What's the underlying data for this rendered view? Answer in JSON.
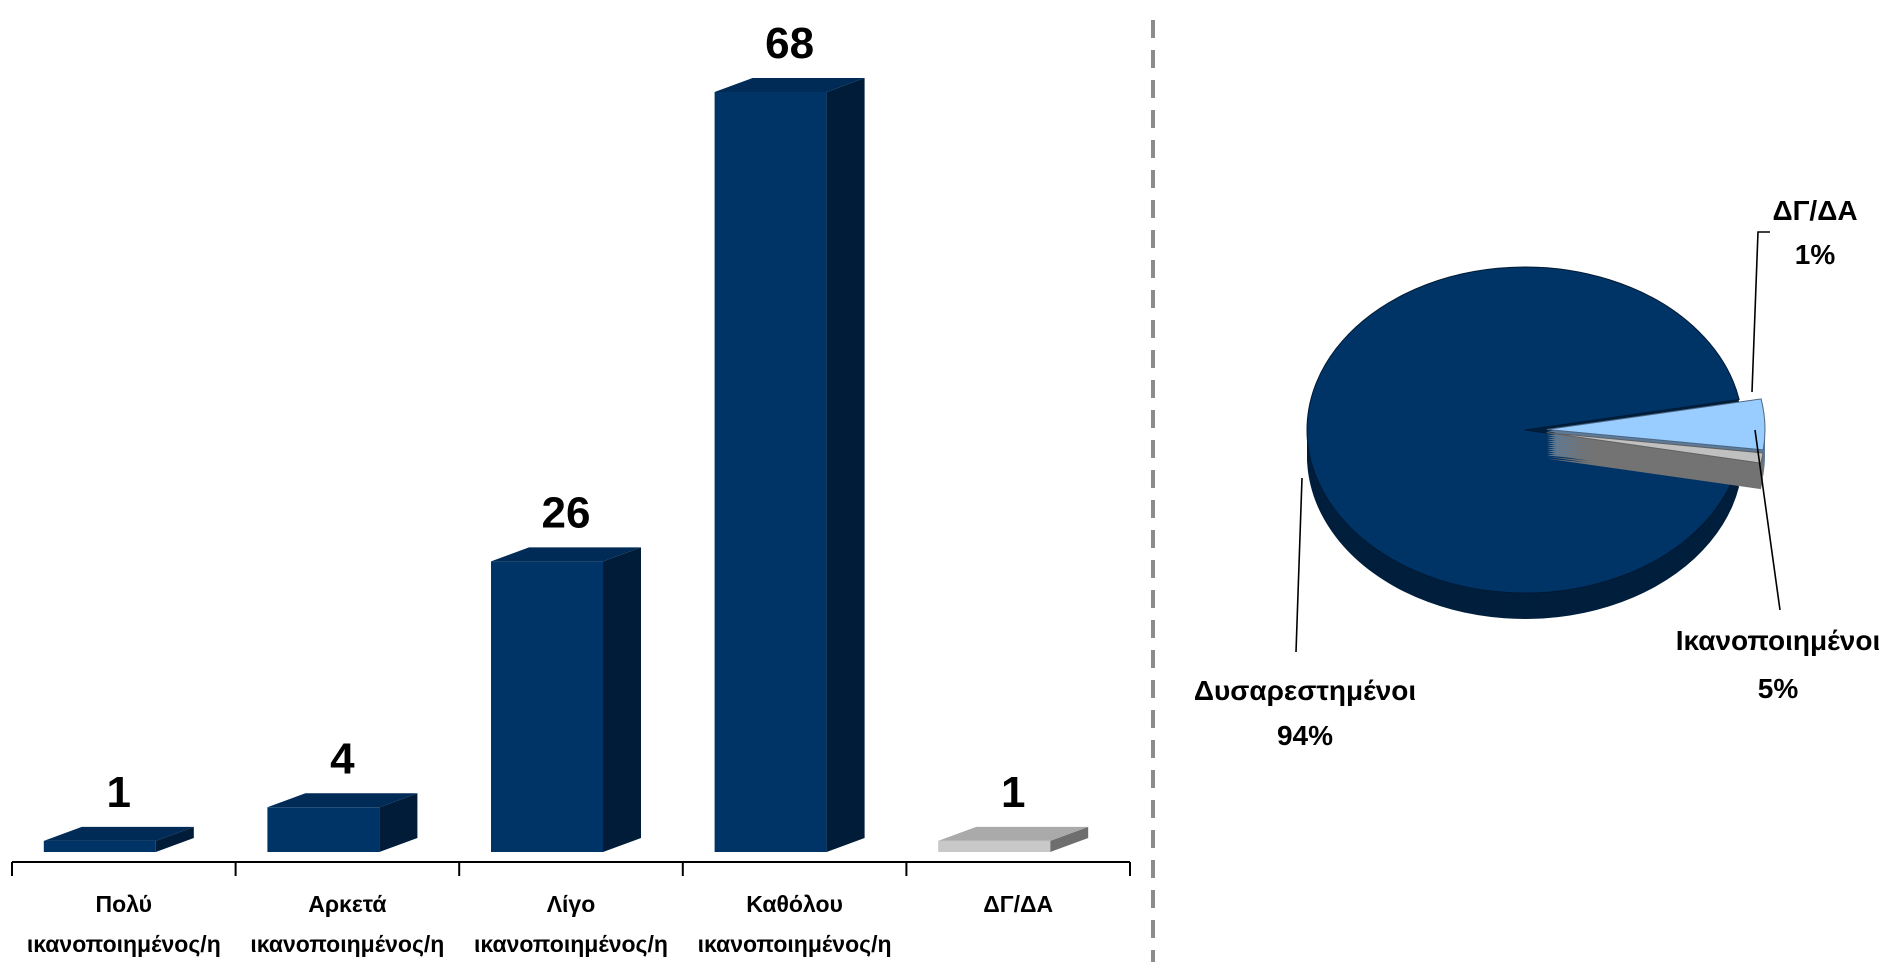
{
  "chart_data": [
    {
      "type": "bar",
      "categories": [
        [
          "Πολύ",
          "ικανοποιημένος/η"
        ],
        [
          "Αρκετά",
          "ικανοποιημένος/η"
        ],
        [
          "Λίγο",
          "ικανοποιημένος/η"
        ],
        [
          "Καθόλου",
          "ικανοποιημένος/η"
        ],
        [
          "ΔΓ/ΔΑ",
          ""
        ]
      ],
      "values": [
        1,
        4,
        26,
        68,
        1
      ],
      "value_labels": [
        "1",
        "4",
        "26",
        "68",
        "1"
      ],
      "ylim": [
        0,
        68
      ],
      "style": "3d-column",
      "colors": [
        "#003366",
        "#003366",
        "#003366",
        "#003366",
        "#c8c8c8"
      ],
      "grid": false
    },
    {
      "type": "pie",
      "style": "3d-exploded",
      "slices": [
        {
          "label": "Δυσαρεστημένοι",
          "value": 94,
          "value_label": "94%",
          "color": "#003366"
        },
        {
          "label": "Ικανοποιημένοι",
          "value": 5,
          "value_label": "5%",
          "color": "#99ccff"
        },
        {
          "label": "ΔΓ/ΔΑ",
          "value": 1,
          "value_label": "1%",
          "color": "#c0c0c0"
        }
      ]
    }
  ]
}
